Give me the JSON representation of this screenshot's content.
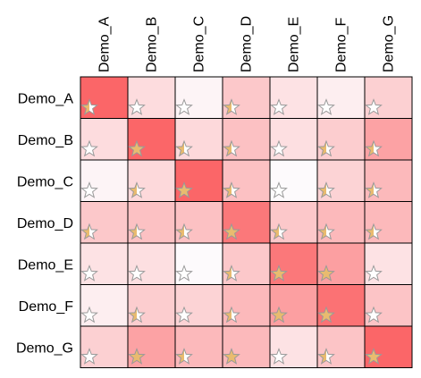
{
  "chart_data": {
    "type": "heatmap",
    "x_labels": [
      "Demo_A",
      "Demo_B",
      "Demo_C",
      "Demo_D",
      "Demo_E",
      "Demo_F",
      "Demo_G"
    ],
    "y_labels": [
      "Demo_A",
      "Demo_B",
      "Demo_C",
      "Demo_D",
      "Demo_E",
      "Demo_F",
      "Demo_G"
    ],
    "x_axis_position": "top",
    "grid": true,
    "value_range": [
      0,
      1
    ],
    "values": [
      [
        1.0,
        0.22,
        0.06,
        0.35,
        0.18,
        0.1,
        0.3
      ],
      [
        0.22,
        1.0,
        0.24,
        0.4,
        0.2,
        0.32,
        0.6
      ],
      [
        0.06,
        0.24,
        1.0,
        0.4,
        0.02,
        0.28,
        0.45
      ],
      [
        0.35,
        0.4,
        0.4,
        0.88,
        0.35,
        0.45,
        0.45
      ],
      [
        0.18,
        0.2,
        0.02,
        0.35,
        0.88,
        0.62,
        0.18
      ],
      [
        0.1,
        0.32,
        0.28,
        0.45,
        0.62,
        0.92,
        0.38
      ],
      [
        0.3,
        0.6,
        0.45,
        0.45,
        0.18,
        0.38,
        1.0
      ]
    ],
    "star_fill": [
      [
        0.5,
        0.0,
        0.0,
        0.5,
        0.0,
        0.0,
        0.0
      ],
      [
        0.0,
        1.0,
        0.5,
        0.5,
        0.0,
        0.5,
        0.5
      ],
      [
        0.0,
        0.5,
        1.0,
        0.5,
        0.0,
        0.5,
        0.5
      ],
      [
        0.5,
        0.5,
        0.5,
        1.0,
        0.5,
        0.5,
        0.5
      ],
      [
        0.0,
        0.0,
        0.0,
        0.5,
        1.0,
        1.0,
        0.0
      ],
      [
        0.0,
        0.5,
        0.0,
        0.5,
        1.0,
        1.0,
        0.0
      ],
      [
        0.0,
        1.0,
        0.5,
        1.0,
        0.0,
        0.5,
        1.0
      ]
    ],
    "colors": {
      "low": "#fdfdff",
      "high": "#fb6668",
      "grid": "#000000",
      "star_fill": "#e9bb6f",
      "star_empty": "#ffffff",
      "star_stroke": "#999999"
    }
  }
}
